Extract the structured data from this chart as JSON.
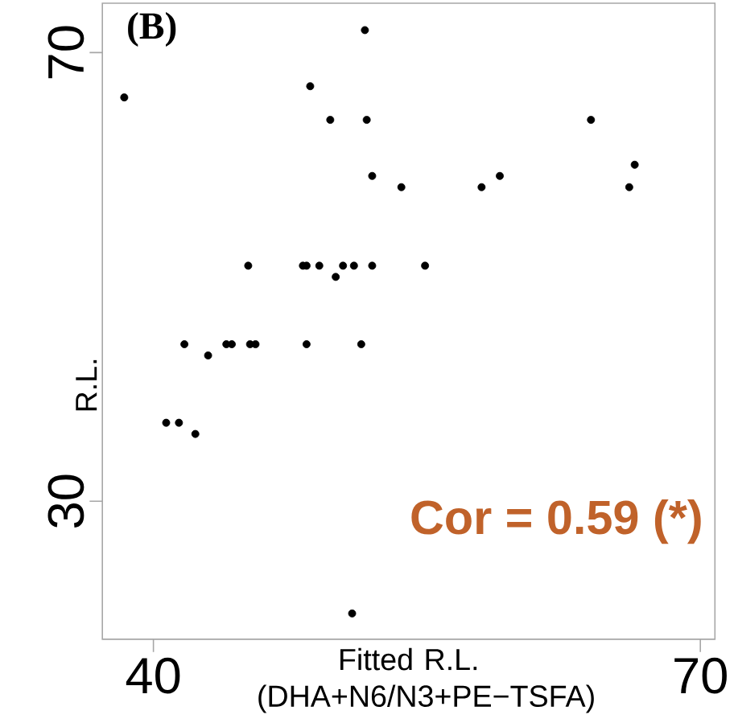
{
  "chart_data": {
    "type": "scatter",
    "xlabel": "Fitted R.L. (DHA+N6/N3+PE−TSFA)",
    "ylabel": "R.L.",
    "annotations": [
      "(B)",
      "Cor = 0.59 (*)"
    ],
    "x": [
      51.6,
      48.6,
      38.4,
      49.7,
      51.7,
      64.0,
      66.4,
      52.0,
      53.6,
      58.0,
      59.0,
      66.1,
      45.2,
      48.2,
      48.4,
      49.1,
      50.0,
      50.4,
      51.0,
      52.0,
      54.9,
      41.7,
      43.0,
      44.0,
      44.3,
      45.3,
      45.6,
      48.4,
      51.4,
      40.7,
      41.4,
      42.3,
      50.9
    ],
    "values": [
      72,
      67,
      66,
      64,
      64,
      64,
      60,
      59,
      58,
      58,
      59,
      58,
      51,
      51,
      51,
      51,
      50,
      51,
      51,
      51,
      51,
      44,
      43,
      44,
      44,
      44,
      44,
      44,
      44,
      37,
      37,
      36,
      20
    ],
    "color": "#000000",
    "xlim": [
      37.2,
      70.8
    ],
    "ylim": [
      17.7,
      74.4
    ],
    "xticks": [
      40,
      70
    ],
    "yticks": [
      30,
      70
    ],
    "grid": false
  }
}
